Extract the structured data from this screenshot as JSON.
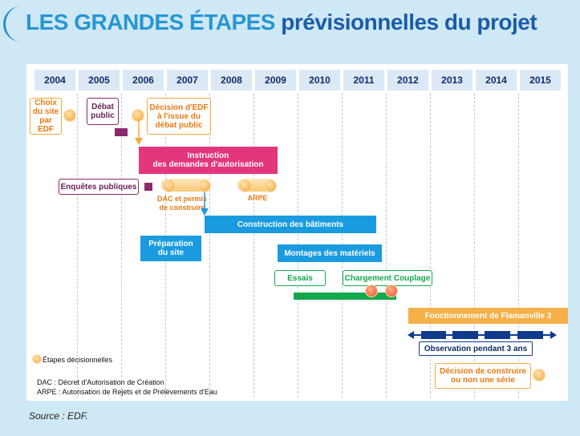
{
  "title": {
    "part1": "LES GRANDES ÉTAPES",
    "part2": "prévisionnelles du projet"
  },
  "years": [
    "2004",
    "2005",
    "2006",
    "2007",
    "2008",
    "2009",
    "2010",
    "2011",
    "2012",
    "2013",
    "2014",
    "2015"
  ],
  "boxes": {
    "choix_site": "Choix\ndu site\npar EDF",
    "debat_public": "Débat\npublic",
    "decision_edf": "Décision d'EDF\nà l'issue du\ndébat public",
    "enquetes_publiques": "Enquêtes publiques",
    "essais": "Essais",
    "chargement_couplage": "Chargement Couplage",
    "observation": "Observation pendant 3 ans",
    "decision_serie": "Décision de construire\nou non une série"
  },
  "bars": {
    "instruction": "Instruction\ndes demandes d'autorisation",
    "construction": "Construction des bâtiments",
    "preparation": "Préparation\ndu site",
    "montages": "Montages des matériels",
    "fonctionnement": "Fonctionnement de Flamanville 3"
  },
  "labels": {
    "dac": "DAC et permis\nde construire",
    "arpe": "ARPE"
  },
  "legend": {
    "etapes": "Étapes décisionnelles",
    "dac_def": "DAC : Décret d'Autorisation de Création",
    "arpe_def": "ARPE : Autorisation de Rejets et de Prélèvements d'Eau"
  },
  "source": "Source : EDF.",
  "colors": {
    "pink": "#e3367b",
    "blue": "#1a9be0",
    "orange": "#f4a93b",
    "purple": "#8c2a6c",
    "green": "#13a84b",
    "navy": "#0f3a8c"
  }
}
